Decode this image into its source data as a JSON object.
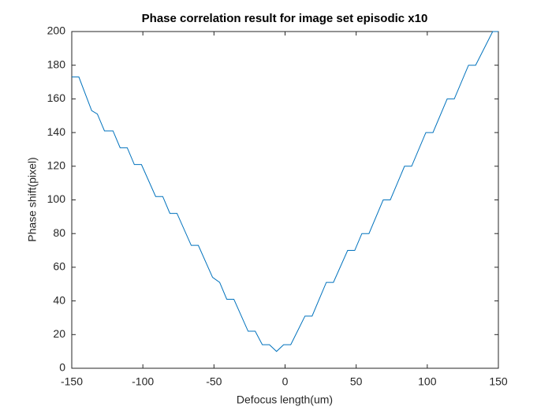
{
  "chart_data": {
    "type": "line",
    "title": "Phase correlation result for image set episodic x10",
    "x_label": "Defocus length(um)",
    "y_label": "Phase shift(pixel)",
    "x": [
      -150,
      -145,
      -136,
      -132,
      -127,
      -121,
      -116,
      -111,
      -106,
      -101,
      -91,
      -86,
      -81,
      -76,
      -66,
      -61,
      -51,
      -46,
      -41,
      -36,
      -26,
      -21,
      -16,
      -11,
      -6,
      -1,
      4,
      14,
      19,
      29,
      34,
      44,
      49,
      54,
      59,
      69,
      74,
      84,
      89,
      99,
      104,
      114,
      119,
      129,
      134,
      146,
      150
    ],
    "series": [
      {
        "name": "Phase shift",
        "color": "#0072bd",
        "values": [
          173,
          173,
          153,
          151,
          141,
          141,
          131,
          131,
          121,
          121,
          102,
          102,
          92,
          92,
          73,
          73,
          54,
          51,
          41,
          41,
          22,
          22,
          14,
          14,
          10,
          14,
          14,
          31,
          31,
          51,
          51,
          70,
          70,
          80,
          80,
          100,
          100,
          120,
          120,
          140,
          140,
          160,
          160,
          180,
          180,
          200,
          200
        ]
      }
    ],
    "xlim": [
      -150,
      150
    ],
    "xticks": [
      -150,
      -100,
      -50,
      0,
      50,
      100,
      150
    ],
    "ylim": [
      0,
      200
    ],
    "yticks": [
      0,
      20,
      40,
      60,
      80,
      100,
      120,
      140,
      160,
      180,
      200
    ]
  }
}
